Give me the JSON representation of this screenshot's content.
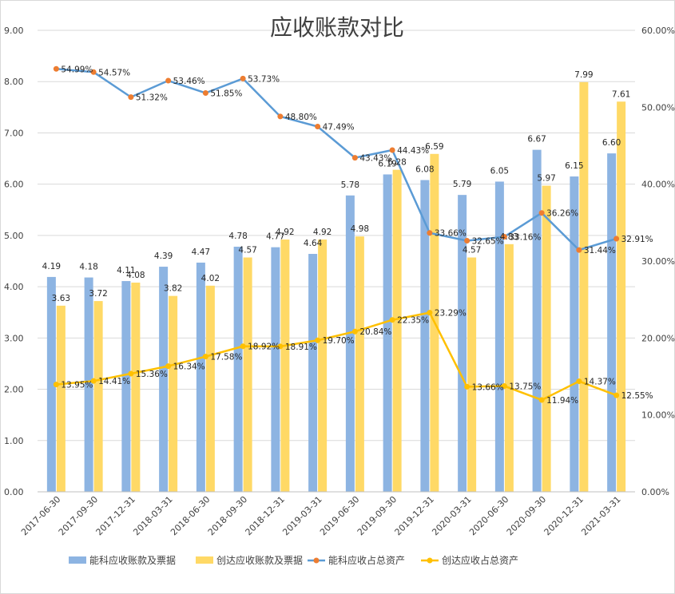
{
  "chart_data": {
    "type": "bar+line",
    "title": "应收账款对比",
    "categories": [
      "2017-06-30",
      "2017-09-30",
      "2017-12-31",
      "2018-03-31",
      "2018-06-30",
      "2018-09-30",
      "2018-12-31",
      "2019-03-31",
      "2019-06-30",
      "2019-09-30",
      "2019-12-31",
      "2020-03-31",
      "2020-06-30",
      "2020-09-30",
      "2020-12-31",
      "2021-03-31"
    ],
    "left_axis": {
      "ylim": [
        0,
        9
      ],
      "ticks": [
        "0.00",
        "1.00",
        "2.00",
        "3.00",
        "4.00",
        "5.00",
        "6.00",
        "7.00",
        "8.00",
        "9.00"
      ]
    },
    "right_axis": {
      "ylim": [
        0,
        60
      ],
      "ticks": [
        "0.00%",
        "10.00%",
        "20.00%",
        "30.00%",
        "40.00%",
        "50.00%",
        "60.00%"
      ]
    },
    "grid": "horizontal",
    "legend_position": "bottom",
    "series": [
      {
        "name": "能科应收账款及票据",
        "type": "bar",
        "axis": "left",
        "color": "#8DB4E2",
        "values": [
          4.19,
          4.18,
          4.11,
          4.39,
          4.47,
          4.78,
          4.77,
          4.64,
          5.78,
          6.19,
          6.08,
          5.79,
          6.05,
          6.67,
          6.15,
          6.6
        ],
        "labels": [
          "4.19",
          "4.18",
          "4.11",
          "4.39",
          "4.47",
          "4.78",
          "4.77",
          "4.64",
          "5.78",
          "6.19",
          "6.08",
          "5.79",
          "6.05",
          "6.67",
          "6.15",
          "6.60"
        ]
      },
      {
        "name": "创达应收账款及票据",
        "type": "bar",
        "axis": "left",
        "color": "#FFD966",
        "values": [
          3.63,
          3.72,
          4.08,
          3.82,
          4.02,
          4.57,
          4.92,
          4.92,
          4.98,
          6.28,
          6.59,
          4.57,
          4.83,
          5.97,
          7.99,
          7.61
        ],
        "labels": [
          "3.63",
          "3.72",
          "4.08",
          "3.82",
          "4.02",
          "4.57",
          "4.92",
          "4.92",
          "4.98",
          "6.28",
          "6.59",
          "4.57",
          "4.83",
          "5.97",
          "7.99",
          "7.61"
        ]
      },
      {
        "name": "能科应收占总资产",
        "type": "line",
        "axis": "right",
        "color": "#5B9BD5",
        "marker_color": "#ED7D31",
        "values": [
          54.99,
          54.57,
          51.32,
          53.46,
          51.85,
          53.73,
          48.8,
          47.49,
          43.43,
          44.43,
          33.66,
          32.65,
          33.16,
          36.26,
          31.44,
          32.91
        ],
        "labels": [
          "54.99%",
          "54.57%",
          "51.32%",
          "53.46%",
          "51.85%",
          "53.73%",
          "48.80%",
          "47.49%",
          "43.43%",
          "44.43%",
          "33.66%",
          "32.65%",
          "33.16%",
          "36.26%",
          "31.44%",
          "32.91%"
        ]
      },
      {
        "name": "创达应收占总资产",
        "type": "line",
        "axis": "right",
        "color": "#FFC000",
        "marker_color": "#FFC000",
        "values": [
          13.95,
          14.41,
          15.36,
          16.34,
          17.58,
          18.92,
          18.91,
          19.7,
          20.84,
          22.35,
          23.29,
          13.66,
          13.75,
          11.94,
          14.37,
          12.55
        ],
        "labels": [
          "13.95%",
          "14.41%",
          "15.36%",
          "16.34%",
          "17.58%",
          "18.92%",
          "18.91%",
          "19.70%",
          "20.84%",
          "22.35%",
          "23.29%",
          "13.66%",
          "13.75%",
          "11.94%",
          "14.37%",
          "12.55%"
        ]
      }
    ]
  }
}
